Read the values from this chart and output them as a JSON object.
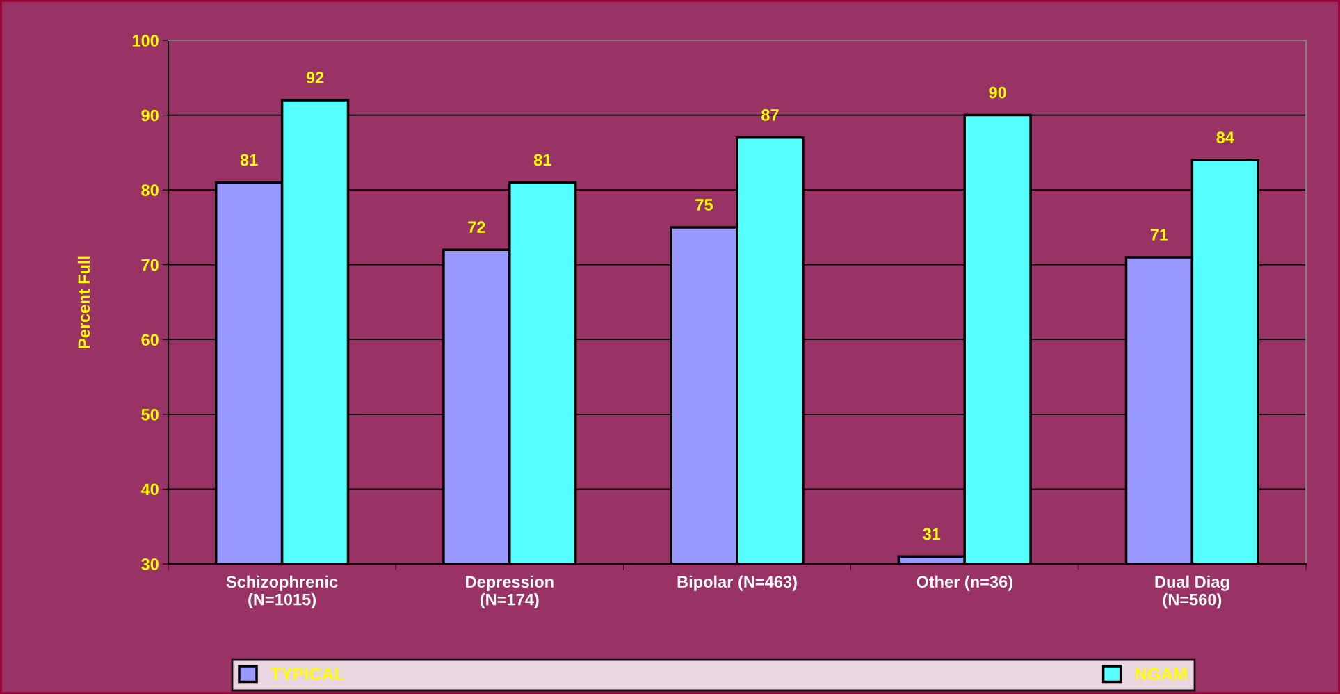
{
  "chart_data": {
    "type": "bar",
    "ylabel": "Percent Full",
    "categories": [
      "Schizophrenic\n(N=1015)",
      "Depression\n(N=174)",
      "Bipolar (N=463)",
      "Other (n=36)",
      "Dual Diag\n(N=560)"
    ],
    "series": [
      {
        "name": "TYPICAL",
        "color": "#9999ff",
        "values": [
          81,
          72,
          75,
          31,
          71
        ]
      },
      {
        "name": "NGAM",
        "color": "#55ffff",
        "values": [
          92,
          81,
          87,
          90,
          84
        ]
      }
    ],
    "ylim": [
      30,
      100
    ],
    "yticks": [
      30,
      40,
      50,
      60,
      70,
      80,
      90,
      100
    ],
    "grid": "y",
    "legend": "bottom",
    "data_labels": true
  }
}
